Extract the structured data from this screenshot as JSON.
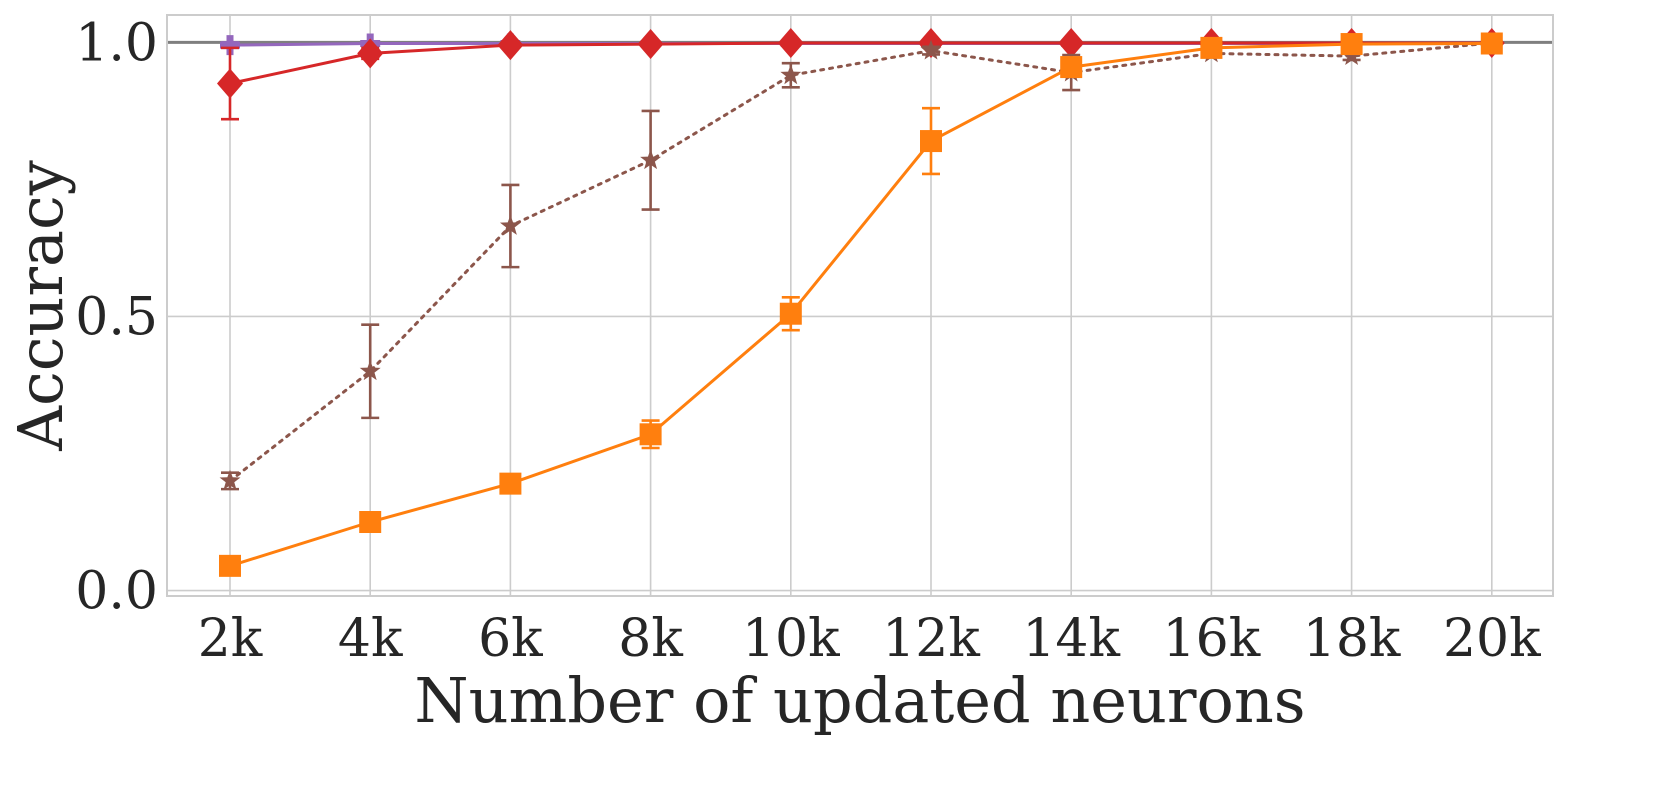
{
  "chart_data": {
    "type": "line",
    "title": "",
    "xlabel": "Number of updated neurons",
    "ylabel": "Accuracy",
    "categories": [
      "2k",
      "4k",
      "6k",
      "8k",
      "10k",
      "12k",
      "14k",
      "16k",
      "18k",
      "20k"
    ],
    "ylim": [
      -0.01,
      1.05
    ],
    "yticks": [
      0.0,
      0.5,
      1.0
    ],
    "ytick_labels": [
      "0.0",
      "0.5",
      "1.0"
    ],
    "grid": true,
    "legend": "none",
    "reference_line": {
      "y": 1.0,
      "color": "#7f7f7f"
    },
    "series": [
      {
        "color": "#9467bd",
        "marker": "plus",
        "dash": "solid",
        "values": [
          0.995,
          0.998,
          0.998,
          0.998,
          0.998,
          0.998,
          0.998,
          0.998,
          0.998,
          0.998
        ],
        "err": [
          0.005,
          0.004,
          0.002,
          0.002,
          0.002,
          0.002,
          0.002,
          0.002,
          0.002,
          0.002
        ]
      },
      {
        "color": "#d62728",
        "marker": "diamond",
        "dash": "solid",
        "values": [
          0.925,
          0.98,
          0.995,
          0.997,
          0.999,
          0.999,
          0.999,
          0.999,
          0.999,
          0.999
        ],
        "err": [
          0.065,
          0.01,
          0.003,
          0.002,
          0.002,
          0.002,
          0.002,
          0.002,
          0.002,
          0.002
        ]
      },
      {
        "color": "#8c564b",
        "marker": "star",
        "dash": "dotted",
        "values": [
          0.2,
          0.4,
          0.665,
          0.785,
          0.94,
          0.985,
          0.945,
          0.98,
          0.975,
          0.999
        ],
        "err": [
          0.015,
          0.085,
          0.075,
          0.09,
          0.022,
          0.007,
          0.032,
          0.006,
          0.007,
          0.002
        ]
      },
      {
        "color": "#ff7f0e",
        "marker": "square",
        "dash": "solid",
        "values": [
          0.045,
          0.125,
          0.195,
          0.285,
          0.505,
          0.82,
          0.955,
          0.99,
          0.997,
          0.998
        ],
        "err": [
          0.004,
          0.01,
          0.01,
          0.025,
          0.03,
          0.06,
          0.01,
          0.005,
          0.002,
          0.001
        ]
      }
    ]
  }
}
